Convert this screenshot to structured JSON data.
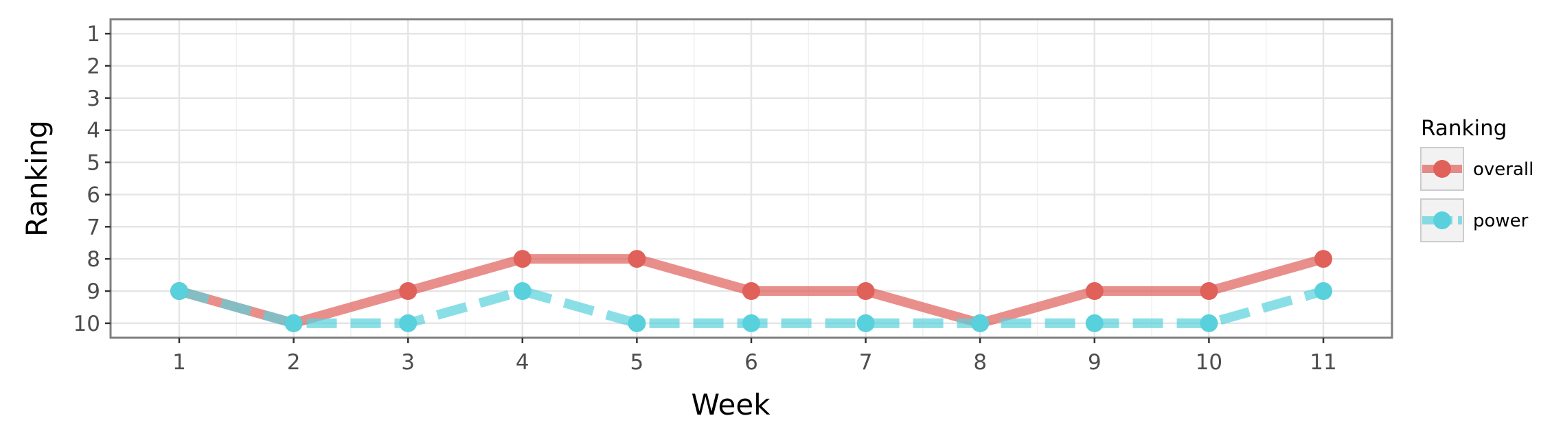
{
  "chart_data": {
    "type": "line",
    "xlabel": "Week",
    "ylabel": "Ranking",
    "x": [
      1,
      2,
      3,
      4,
      5,
      6,
      7,
      8,
      9,
      10,
      11
    ],
    "xlim": [
      0.4,
      11.6
    ],
    "ylim": [
      10.45,
      0.55
    ],
    "y_reversed": true,
    "y_ticks": [
      1,
      2,
      3,
      4,
      5,
      6,
      7,
      8,
      9,
      10
    ],
    "grid": true,
    "legend": {
      "title": "Ranking",
      "position": "right"
    },
    "series": [
      {
        "name": "overall",
        "values": [
          9,
          10,
          9,
          8,
          8,
          9,
          9,
          10,
          9,
          9,
          8
        ],
        "color": "#e0605a",
        "linestyle": "solid"
      },
      {
        "name": "power",
        "values": [
          9,
          10,
          10,
          9,
          10,
          10,
          10,
          10,
          10,
          10,
          9
        ],
        "color": "#58d1dd",
        "linestyle": "dashed"
      }
    ]
  }
}
